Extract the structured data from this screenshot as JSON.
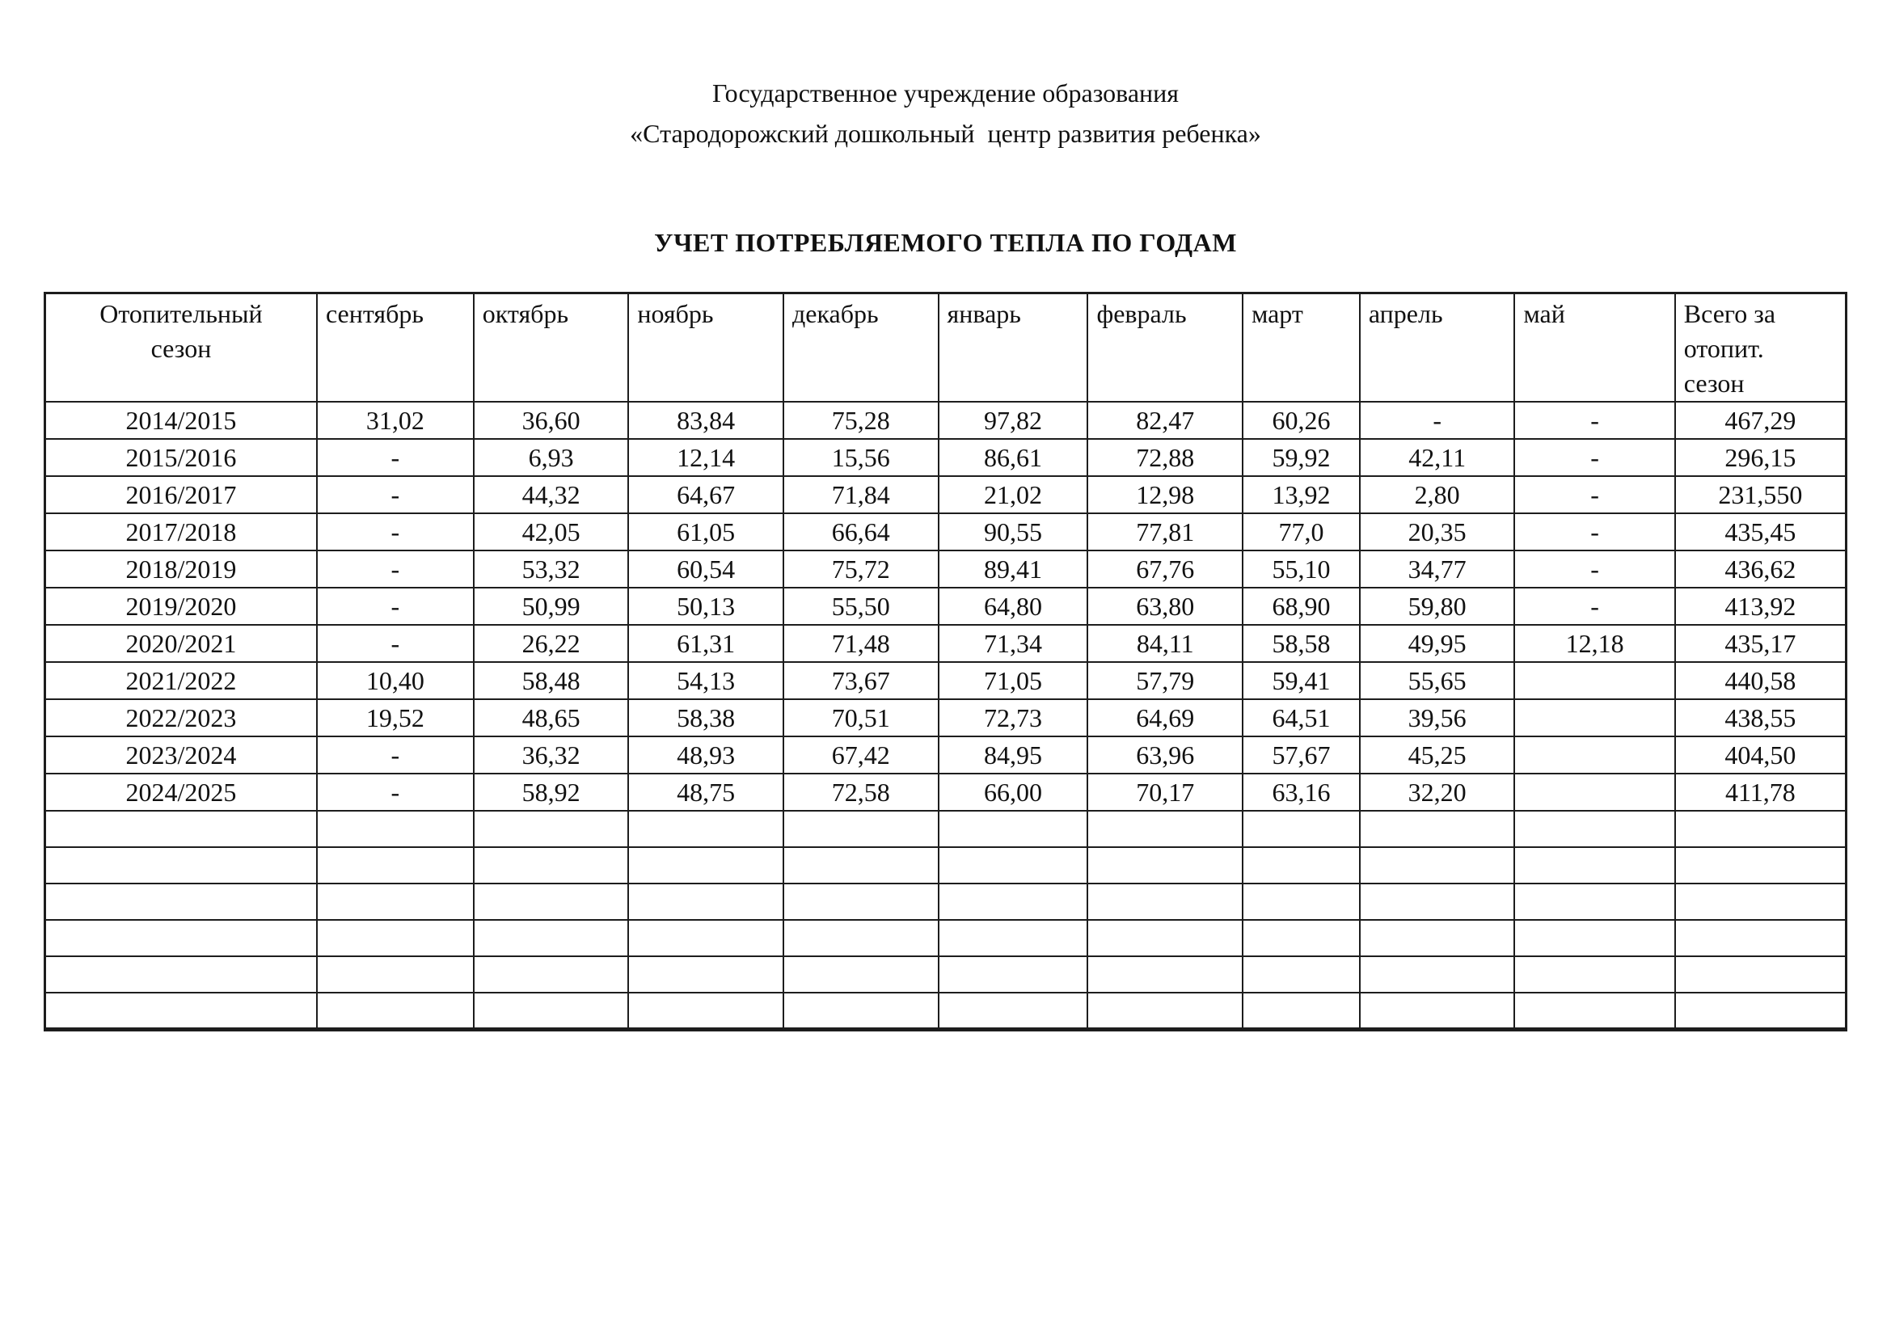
{
  "document": {
    "org_line1": "Государственное учреждение образования",
    "org_line2": "«Стародорожский дошкольный  центр развития ребенка»",
    "title": "УЧЕТ ПОТРЕБЛЯЕМОГО ТЕПЛА ПО ГОДАМ"
  },
  "table": {
    "headers": [
      "Отопительный\nсезон",
      "сентябрь",
      "октябрь",
      "ноябрь",
      "декабрь",
      "январь",
      "февраль",
      "март",
      "апрель",
      "май",
      "Всего за\nотопит.\nсезон"
    ],
    "rows": [
      {
        "season": "2014/2015",
        "values": [
          "31,02",
          "36,60",
          "83,84",
          "75,28",
          "97,82",
          "82,47",
          "60,26",
          "-",
          "-",
          "467,29"
        ]
      },
      {
        "season": "2015/2016",
        "values": [
          "-",
          "6,93",
          "12,14",
          "15,56",
          "86,61",
          "72,88",
          "59,92",
          "42,11",
          "-",
          "296,15"
        ]
      },
      {
        "season": "2016/2017",
        "values": [
          "-",
          "44,32",
          "64,67",
          "71,84",
          "21,02",
          "12,98",
          "13,92",
          "2,80",
          "-",
          "231,550"
        ]
      },
      {
        "season": "2017/2018",
        "values": [
          "-",
          "42,05",
          "61,05",
          "66,64",
          "90,55",
          "77,81",
          "77,0",
          "20,35",
          "-",
          "435,45"
        ]
      },
      {
        "season": "2018/2019",
        "values": [
          "-",
          "53,32",
          "60,54",
          "75,72",
          "89,41",
          "67,76",
          "55,10",
          "34,77",
          "-",
          "436,62"
        ]
      },
      {
        "season": "2019/2020",
        "values": [
          "-",
          "50,99",
          "50,13",
          "55,50",
          "64,80",
          "63,80",
          "68,90",
          "59,80",
          "-",
          "413,92"
        ]
      },
      {
        "season": "2020/2021",
        "values": [
          "-",
          "26,22",
          "61,31",
          "71,48",
          "71,34",
          "84,11",
          "58,58",
          "49,95",
          "12,18",
          "435,17"
        ]
      },
      {
        "season": "2021/2022",
        "values": [
          "10,40",
          "58,48",
          "54,13",
          "73,67",
          "71,05",
          "57,79",
          "59,41",
          "55,65",
          "",
          "440,58"
        ]
      },
      {
        "season": "2022/2023",
        "values": [
          "19,52",
          "48,65",
          "58,38",
          "70,51",
          "72,73",
          "64,69",
          "64,51",
          "39,56",
          "",
          "438,55"
        ]
      },
      {
        "season": "2023/2024",
        "values": [
          "-",
          "36,32",
          "48,93",
          "67,42",
          "84,95",
          "63,96",
          "57,67",
          "45,25",
          "",
          "404,50"
        ]
      },
      {
        "season": "2024/2025",
        "values": [
          "-",
          "58,92",
          "48,75",
          "72,58",
          "66,00",
          "70,17",
          "63,16",
          "32,20",
          "",
          "411,78"
        ]
      }
    ],
    "empty_rows": 6
  },
  "colors": {
    "page_background": "#ffffff",
    "text": "#111111",
    "table_border": "#1d1d1d"
  }
}
